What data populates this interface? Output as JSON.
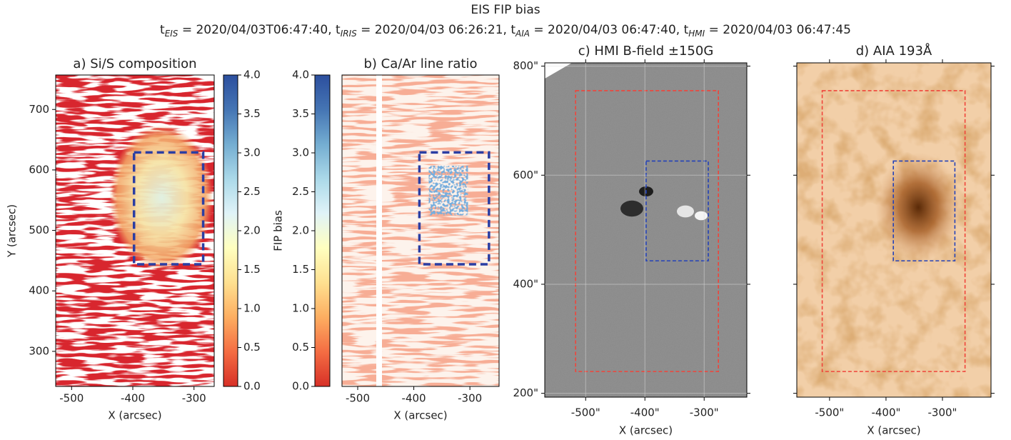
{
  "title": "EIS FIP bias",
  "subtitle": [
    {
      "symbol": "t",
      "sub": "EIS",
      "text": " = 2020/04/03T06:47:40, "
    },
    {
      "symbol": "t",
      "sub": "IRIS",
      "text": " = 2020/04/03 06:26:21, "
    },
    {
      "symbol": "t",
      "sub": "AIA",
      "text": " = 2020/04/03 06:47:40, "
    },
    {
      "symbol": "t",
      "sub": "HMI",
      "text": " = 2020/04/03 06:47:45"
    }
  ],
  "chart_data": [
    {
      "type": "heatmap",
      "title": "a) Si/S composition",
      "xlabel": "X (arcsec)",
      "ylabel": "Y (arcsec)",
      "xlim": [
        -526,
        -267
      ],
      "ylim": [
        242,
        757
      ],
      "xticks": [
        -500,
        -400,
        -300
      ],
      "yticks": [
        300,
        400,
        500,
        600,
        700
      ],
      "boxes": [
        {
          "color": "#2b3ea3",
          "x": [
            -398,
            -285
          ],
          "y": [
            444,
            629
          ]
        }
      ],
      "colorbar": {
        "lim": [
          0,
          4
        ],
        "side": "right",
        "colors": [
          "#d73027",
          "#f46d43",
          "#fdae61",
          "#fee090",
          "#ffffbf",
          "#e0f3f8",
          "#abd9e9",
          "#74add1",
          "#4575b4",
          "#2c4f9e"
        ],
        "ticks": [
          {
            "value": 0,
            "label": "0.0"
          },
          0.5,
          {
            "value": 1,
            "label": "1.0"
          },
          1.5,
          {
            "value": 2,
            "label": "2.0"
          },
          2.5,
          {
            "value": 3,
            "label": "3.0"
          },
          3.5,
          {
            "value": 4,
            "label": "4.0"
          }
        ]
      }
    },
    {
      "type": "heatmap",
      "title": "b) Ca/Ar line ratio",
      "xlabel": "X (arcsec)",
      "xlim": [
        -528,
        -248
      ],
      "ylim": [
        242,
        757
      ],
      "xticks": [
        -500,
        -400,
        -300
      ],
      "boxes": [
        {
          "color": "#2b3ea3",
          "x": [
            -390,
            -266
          ],
          "y": [
            444,
            629
          ]
        }
      ],
      "colorbar": {
        "lim": [
          0,
          4
        ],
        "side": "left",
        "label": "FIP bias",
        "colors": [
          "#d73027",
          "#f46d43",
          "#fdae61",
          "#fee090",
          "#ffffbf",
          "#e0f3f8",
          "#abd9e9",
          "#74add1",
          "#4575b4",
          "#2c4f9e"
        ],
        "ticks": [
          {
            "value": 0,
            "label": "0.0"
          },
          0.5,
          {
            "value": 1,
            "label": "1.0"
          },
          1.5,
          {
            "value": 2,
            "label": "2.0"
          },
          2.5,
          {
            "value": 3,
            "label": "3.0"
          },
          3.5,
          {
            "value": 4,
            "label": "4.0"
          }
        ]
      }
    },
    {
      "type": "magnetogram",
      "title": "c) HMI B-field ±150G",
      "xlabel": "X (arcsec)",
      "xlim": [
        -569,
        -228
      ],
      "ylim": [
        193,
        806
      ],
      "grid": true,
      "xticks": [
        {
          "value": -500,
          "label": "-500\""
        },
        {
          "value": -400,
          "label": "-400\""
        },
        {
          "value": -300,
          "label": "-300\""
        }
      ],
      "yticks": [
        {
          "value": 200,
          "label": "200\""
        },
        {
          "value": 400,
          "label": "400\""
        },
        {
          "value": 600,
          "label": "600\""
        },
        {
          "value": 800,
          "label": "800\""
        }
      ],
      "boxes": [
        {
          "color": "#f0443a",
          "x": [
            -517,
            -276
          ],
          "y": [
            240,
            755
          ]
        },
        {
          "color": "#2442b8",
          "x": [
            -398,
            -293
          ],
          "y": [
            443,
            626
          ]
        }
      ]
    },
    {
      "type": "euv",
      "title": "d) AIA 193Å",
      "xlabel": "X (arcsec)",
      "xlim": [
        -558,
        -214
      ],
      "ylim": [
        193,
        806
      ],
      "show_ytick_labels": false,
      "xticks": [
        {
          "value": -500,
          "label": "-500\""
        },
        {
          "value": -400,
          "label": "-400\""
        },
        {
          "value": -300,
          "label": "-300\""
        }
      ],
      "yticks": [
        200,
        400,
        600,
        800
      ],
      "boxes": [
        {
          "color": "#f0443a",
          "x": [
            -513,
            -260
          ],
          "y": [
            240,
            755
          ]
        },
        {
          "color": "#2442b8",
          "x": [
            -387,
            -278
          ],
          "y": [
            443,
            626
          ]
        }
      ]
    }
  ]
}
